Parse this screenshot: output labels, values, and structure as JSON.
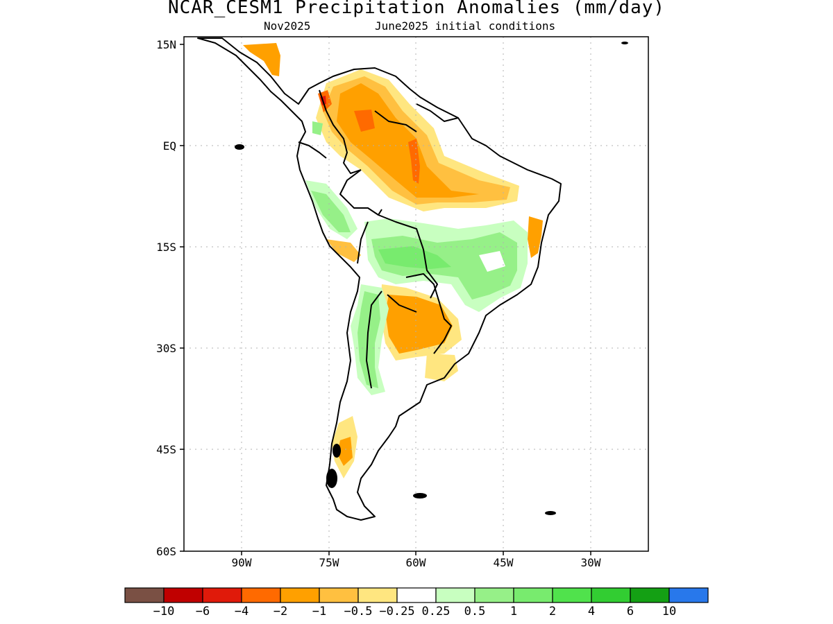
{
  "title": "NCAR_CESM1 Precipitation Anomalies (mm/day)",
  "subtitle_left": "Nov2025",
  "subtitle_right": "June2025 initial conditions",
  "lat_ticks": [
    "15N",
    "EQ",
    "15S",
    "30S",
    "45S",
    "60S"
  ],
  "lon_ticks": [
    "90W",
    "75W",
    "60W",
    "45W",
    "30W"
  ],
  "colorbar": {
    "labels": [
      "−10",
      "−6",
      "−4",
      "−2",
      "−1",
      "−0.5",
      "−0.25",
      "0.25",
      "0.5",
      "1",
      "2",
      "4",
      "6",
      "10"
    ],
    "colors": [
      "#7a5044",
      "#c00000",
      "#e01a0a",
      "#ff6a00",
      "#ffa000",
      "#ffc040",
      "#ffe680",
      "#ffffff",
      "#c8ffc0",
      "#96f088",
      "#78eb6e",
      "#50e24c",
      "#32cd32",
      "#14a014",
      "#2878eb"
    ]
  }
}
